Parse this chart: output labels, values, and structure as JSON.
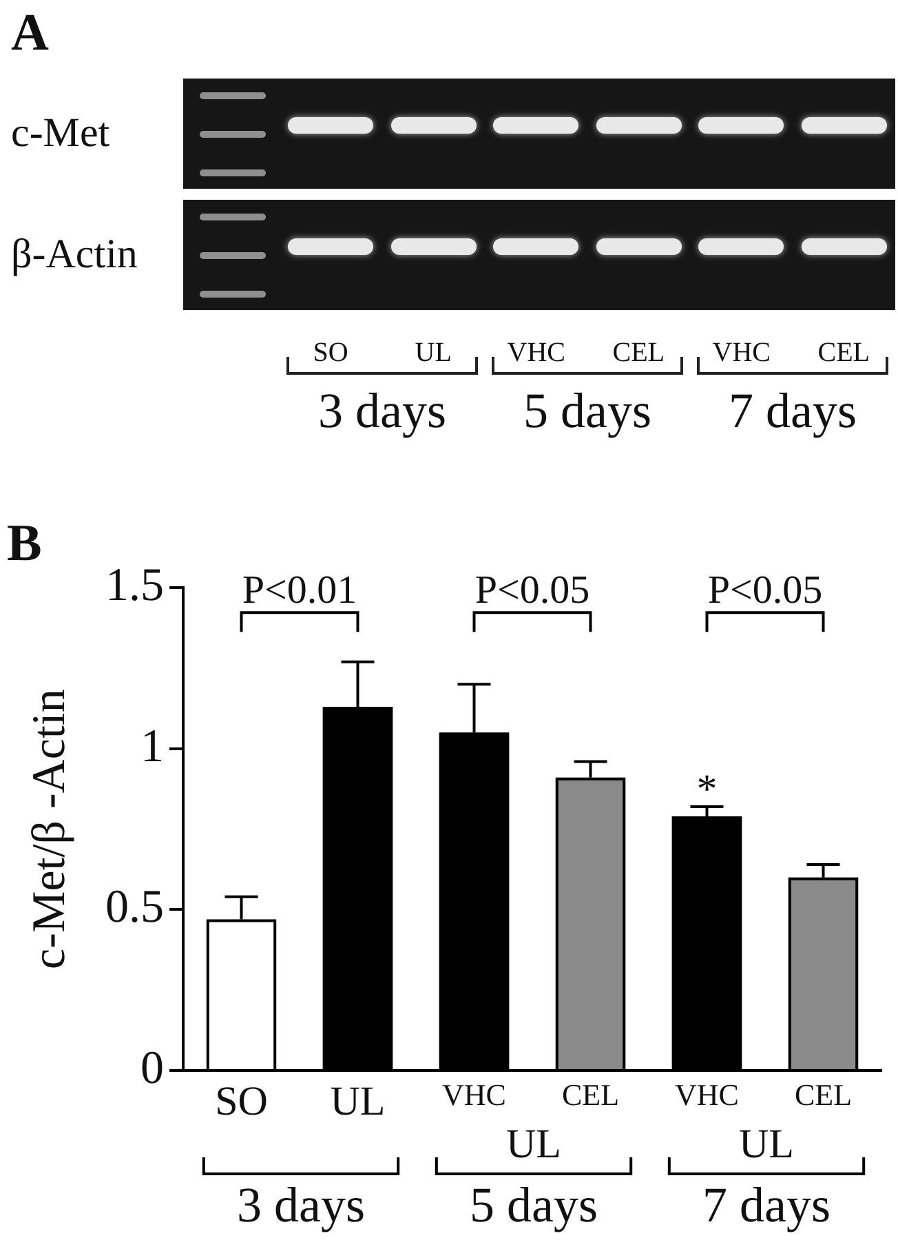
{
  "chart_data": [
    {
      "type": "other",
      "title": "A",
      "categories": [
        "SO",
        "UL",
        "VHC",
        "CEL",
        "VHC",
        "CEL"
      ],
      "y_categories": [
        "c-Met",
        "β-Actin"
      ],
      "annotations": [
        "3 days",
        "5 days",
        "7 days"
      ]
    },
    {
      "type": "bar",
      "title": "B",
      "ylabel": "c-Met/β -Actin",
      "categories": [
        "SO",
        "UL",
        "VHC",
        "CEL",
        "VHC",
        "CEL"
      ],
      "values": [
        0.47,
        1.13,
        1.05,
        0.91,
        0.79,
        0.6
      ],
      "colors": [
        "#ffffff",
        "#000000",
        "#000000",
        "#8a8a8a",
        "#000000",
        "#8a8a8a"
      ],
      "errors": [
        [
          0.47,
          0.54
        ],
        [
          1.13,
          1.27
        ],
        [
          1.05,
          1.2
        ],
        [
          0.91,
          0.96
        ],
        [
          0.79,
          0.82
        ],
        [
          0.6,
          0.64
        ]
      ],
      "value_labels": [
        null,
        null,
        null,
        null,
        "*",
        null
      ],
      "ylim": [
        0,
        1.5
      ],
      "yticks": [
        0,
        0.5,
        1,
        1.5
      ],
      "annotations": [
        "P<0.01",
        "P<0.05",
        "P<0.05",
        "UL",
        "UL",
        "3 days",
        "5 days",
        "7 days"
      ]
    }
  ]
}
